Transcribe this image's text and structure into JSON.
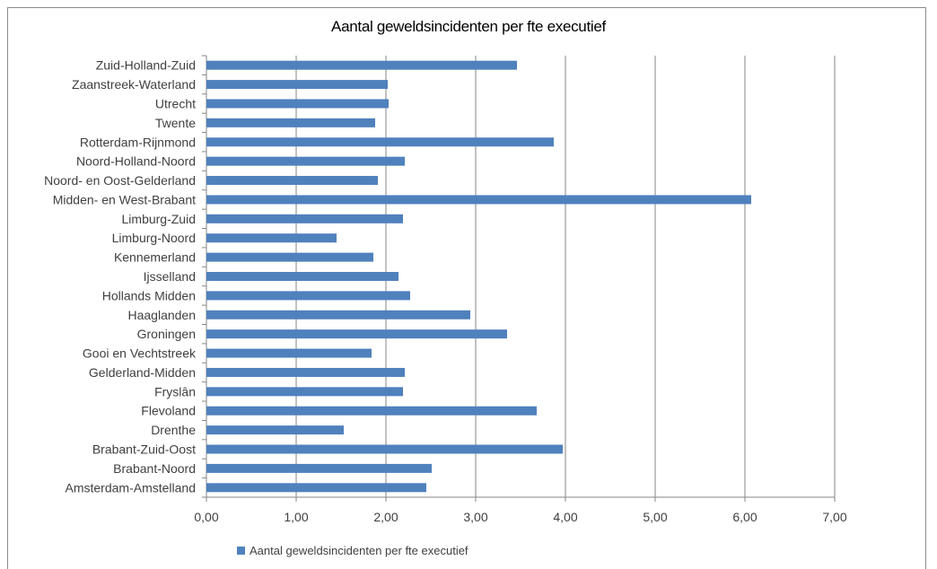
{
  "chart_data": {
    "type": "bar",
    "orientation": "horizontal",
    "title": "Aantal geweldsincidenten per fte executief",
    "xlabel": "",
    "ylabel": "",
    "xlim": [
      0,
      7
    ],
    "x_ticks": [
      "0,00",
      "1,00",
      "2,00",
      "3,00",
      "4,00",
      "5,00",
      "6,00",
      "7,00"
    ],
    "gridlines": "vertical",
    "legend_position": "bottom-left",
    "bar_color": "#4f81bd",
    "categories": [
      "Zuid-Holland-Zuid",
      "Zaanstreek-Waterland",
      "Utrecht",
      "Twente",
      "Rotterdam-Rijnmond",
      "Noord-Holland-Noord",
      "Noord- en Oost-Gelderland",
      "Midden- en West-Brabant",
      "Limburg-Zuid",
      "Limburg-Noord",
      "Kennemerland",
      "Ijsselland",
      "Hollands Midden",
      "Haaglanden",
      "Groningen",
      "Gooi en Vechtstreek",
      "Gelderland-Midden",
      "Fryslân",
      "Flevoland",
      "Drenthe",
      "Brabant-Zuid-Oost",
      "Brabant-Noord",
      "Amsterdam-Amstelland"
    ],
    "series": [
      {
        "name": "Aantal geweldsincidenten per fte executief",
        "values": [
          3.46,
          2.02,
          2.03,
          1.88,
          3.87,
          2.21,
          1.91,
          6.07,
          2.19,
          1.45,
          1.86,
          2.14,
          2.27,
          2.94,
          3.35,
          1.84,
          2.21,
          2.19,
          3.68,
          1.53,
          3.97,
          2.51,
          2.45
        ]
      }
    ]
  }
}
